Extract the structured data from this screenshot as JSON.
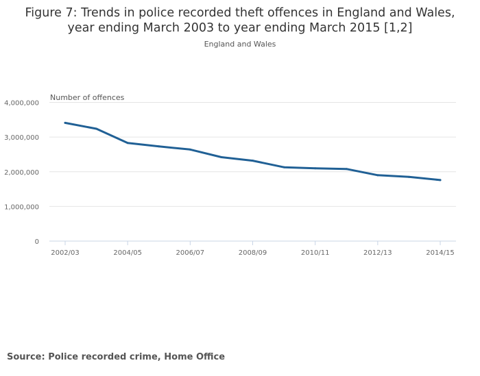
{
  "chart_data": {
    "type": "line",
    "title": "Figure 7: Trends in police recorded theft offences in England and Wales, year ending March 2003 to year ending March 2015 [1,2]",
    "title_lines": [
      "Figure 7: Trends in police recorded theft offences in England and Wales,",
      "year ending March 2003 to year ending March 2015 [1,2]"
    ],
    "subtitle": "England and Wales",
    "ylabel": "Number of offences",
    "xlabel": "",
    "ylim": [
      0,
      4000000
    ],
    "yticks": [
      0,
      1000000,
      2000000,
      3000000,
      4000000
    ],
    "ytick_labels": [
      "0",
      "1,000,000",
      "2,000,000",
      "3,000,000",
      "4,000,000"
    ],
    "categories": [
      "2002/03",
      "2003/04",
      "2004/05",
      "2005/06",
      "2006/07",
      "2007/08",
      "2008/09",
      "2009/10",
      "2010/11",
      "2011/12",
      "2012/13",
      "2013/14",
      "2014/15"
    ],
    "xtick_labels": [
      "2002/03",
      "2004/05",
      "2006/07",
      "2008/09",
      "2010/11",
      "2012/13",
      "2014/15"
    ],
    "grid": true,
    "series": [
      {
        "name": "Theft offences",
        "color": "#206095",
        "values": [
          3410000,
          3240000,
          2830000,
          2730000,
          2640000,
          2420000,
          2320000,
          2130000,
          2100000,
          2080000,
          1900000,
          1850000,
          1760000
        ]
      }
    ]
  },
  "source": "Source:  Police recorded crime, Home Office"
}
